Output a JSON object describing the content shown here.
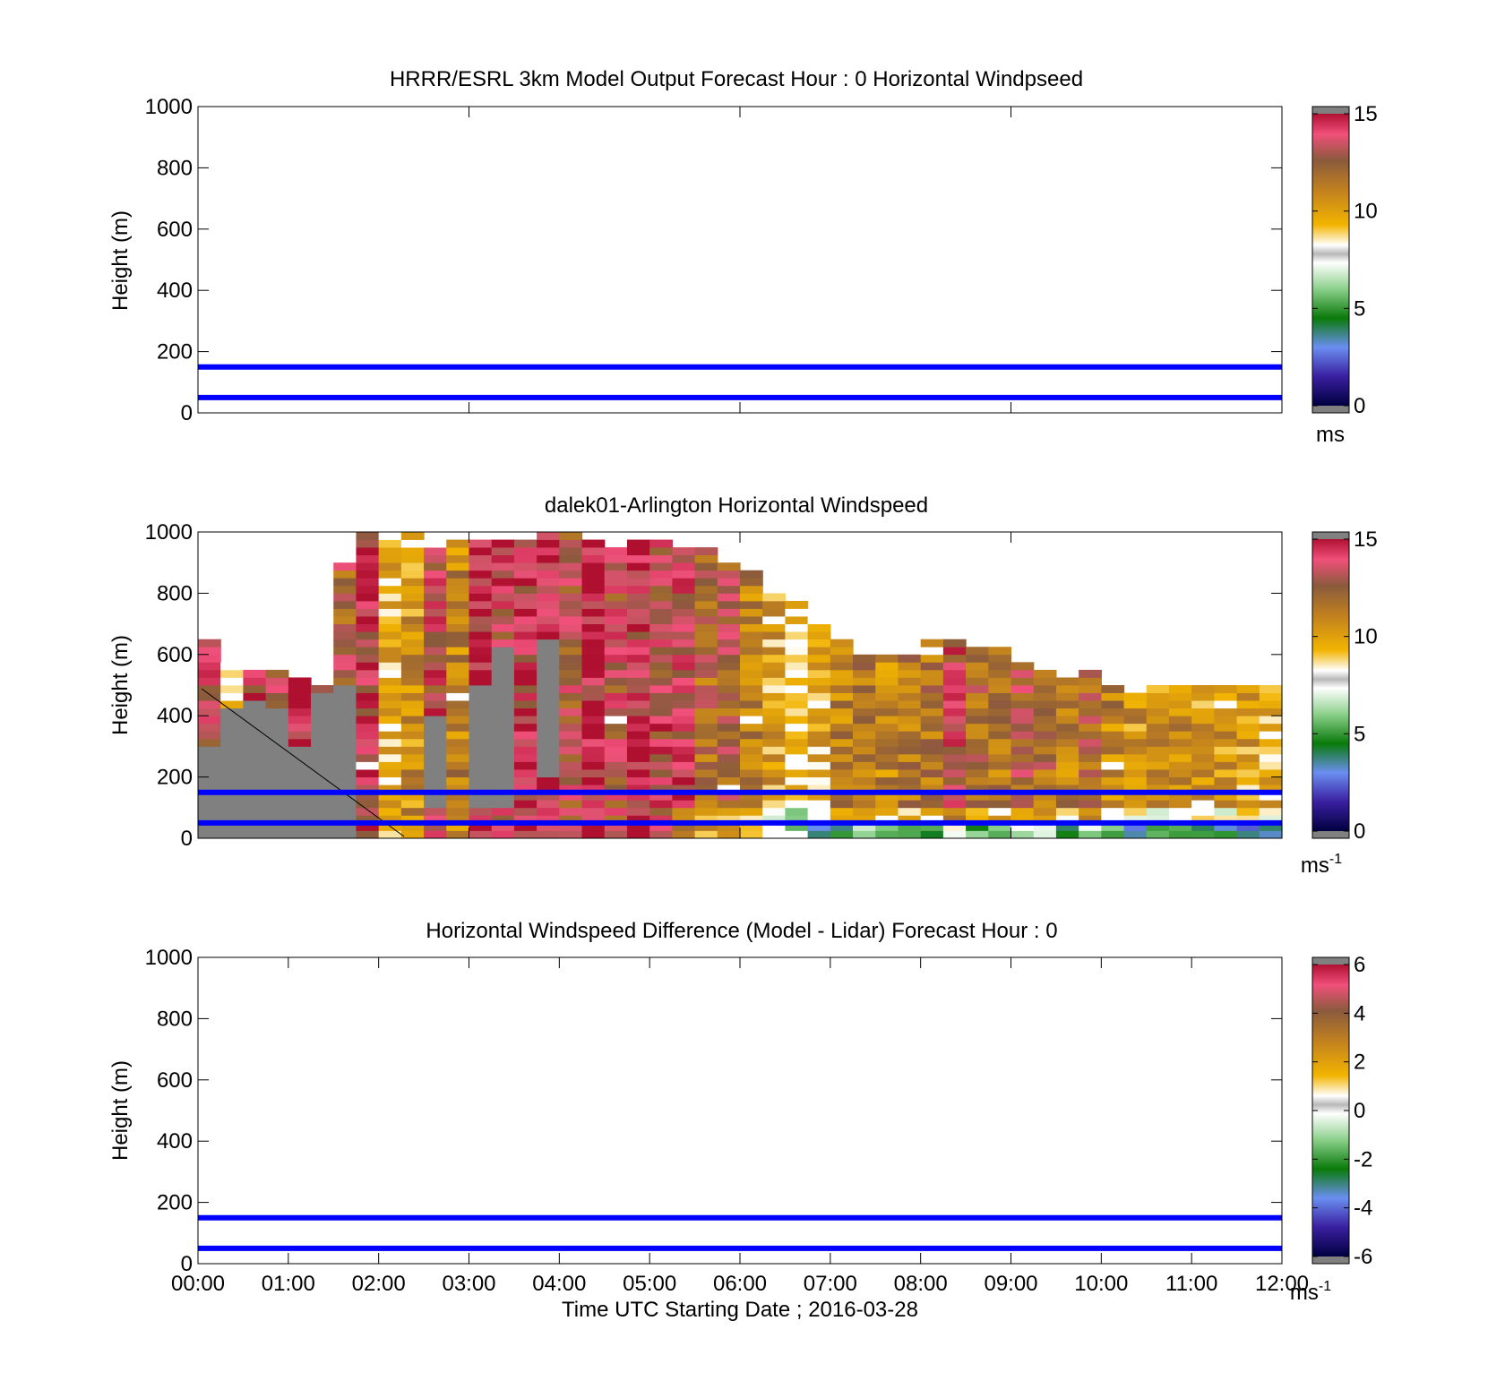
{
  "chart_data": [
    {
      "type": "heatmap",
      "title": "HRRR/ESRL 3km Model Output   Forecast Hour : 0 Horizontal Windpseed",
      "ylabel": "Height (m)",
      "ylim": [
        0,
        1000
      ],
      "yticks": [
        "0",
        "200",
        "400",
        "600",
        "800",
        "1000"
      ],
      "xlim": [
        "00:00",
        "12:00"
      ],
      "xtick_hours": [
        0,
        3,
        6,
        9,
        12
      ],
      "colorbar": {
        "ticks": [
          "0",
          "5",
          "10",
          "15"
        ],
        "min": 0,
        "max": 15,
        "unit": "ms",
        "unit_sup": "",
        "scale": "windspeed"
      },
      "reference_lines_m": [
        50,
        150
      ],
      "cells": []
    },
    {
      "type": "heatmap",
      "title": "dalek01-Arlington  Horizontal Windspeed",
      "ylabel": "Height (m)",
      "ylim": [
        0,
        1000
      ],
      "yticks": [
        "0",
        "200",
        "400",
        "600",
        "800",
        "1000"
      ],
      "xlim": [
        "00:00",
        "12:00"
      ],
      "xtick_hours": [
        0,
        3,
        6,
        9,
        12
      ],
      "colorbar": {
        "ticks": [
          "0",
          "5",
          "10",
          "15"
        ],
        "min": 0,
        "max": 15,
        "unit": "ms",
        "unit_sup": "-1",
        "scale": "windspeed"
      },
      "reference_lines_m": [
        50,
        150
      ],
      "time_step_minutes": 15,
      "height_step_m": 25,
      "columns": [
        {
          "t": 0.0,
          "top": 650,
          "speed": 13.5,
          "gray": [
            0,
            280
          ]
        },
        {
          "t": 0.25,
          "top": 575,
          "speed": 9.5,
          "gray": [
            0,
            410
          ]
        },
        {
          "t": 0.5,
          "top": 545,
          "speed": 14.0,
          "gray": [
            0,
            430
          ]
        },
        {
          "t": 0.75,
          "top": 540,
          "speed": 13.5,
          "gray": [
            0,
            420
          ]
        },
        {
          "t": 1.0,
          "top": 520,
          "speed": 14.5,
          "gray": [
            0,
            300
          ]
        },
        {
          "t": 1.25,
          "top": 500,
          "speed": 13.5,
          "gray": [
            0,
            470
          ]
        },
        {
          "t": 1.5,
          "top": 900,
          "speed": 12.5,
          "gray": [
            0,
            480
          ]
        },
        {
          "t": 1.75,
          "top": 990,
          "speed": 14.0
        },
        {
          "t": 2.0,
          "top": 990,
          "speed": 9.5
        },
        {
          "t": 2.25,
          "top": 980,
          "speed": 10.5
        },
        {
          "t": 2.5,
          "top": 975,
          "speed": 13.5,
          "gray": [
            80,
            400
          ]
        },
        {
          "t": 2.75,
          "top": 970,
          "speed": 11.0
        },
        {
          "t": 3.0,
          "top": 975,
          "speed": 14.5,
          "gray": [
            100,
            500
          ]
        },
        {
          "t": 3.25,
          "top": 975,
          "speed": 13.5,
          "gray": [
            100,
            620
          ]
        },
        {
          "t": 3.5,
          "top": 975,
          "speed": 14.0
        },
        {
          "t": 3.75,
          "top": 1000,
          "speed": 14.5,
          "gray": [
            200,
            650
          ]
        },
        {
          "t": 4.0,
          "top": 1000,
          "speed": 13.0
        },
        {
          "t": 4.25,
          "top": 960,
          "speed": 14.5
        },
        {
          "t": 4.5,
          "top": 935,
          "speed": 13.0
        },
        {
          "t": 4.75,
          "top": 960,
          "speed": 14.0
        },
        {
          "t": 5.0,
          "top": 975,
          "speed": 13.5
        },
        {
          "t": 5.25,
          "top": 950,
          "speed": 14.0
        },
        {
          "t": 5.5,
          "top": 935,
          "speed": 12.0
        },
        {
          "t": 5.75,
          "top": 900,
          "speed": 12.5
        },
        {
          "t": 6.0,
          "top": 855,
          "speed": 11.0
        },
        {
          "t": 6.25,
          "top": 800,
          "speed": 10.0
        },
        {
          "t": 6.5,
          "top": 755,
          "speed": 9.0
        },
        {
          "t": 6.75,
          "top": 725,
          "speed": 9.5
        },
        {
          "t": 7.0,
          "top": 650,
          "speed": 11.0
        },
        {
          "t": 7.25,
          "top": 580,
          "speed": 11.5
        },
        {
          "t": 7.5,
          "top": 590,
          "speed": 11.0
        },
        {
          "t": 7.75,
          "top": 600,
          "speed": 11.5
        },
        {
          "t": 8.0,
          "top": 640,
          "speed": 11.5
        },
        {
          "t": 8.25,
          "top": 640,
          "speed": 13.5
        },
        {
          "t": 8.5,
          "top": 620,
          "speed": 12.0
        },
        {
          "t": 8.75,
          "top": 610,
          "speed": 11.5
        },
        {
          "t": 9.0,
          "top": 560,
          "speed": 12.5
        },
        {
          "t": 9.25,
          "top": 540,
          "speed": 12.0
        },
        {
          "t": 9.5,
          "top": 520,
          "speed": 11.0
        },
        {
          "t": 9.75,
          "top": 530,
          "speed": 12.0
        },
        {
          "t": 10.0,
          "top": 500,
          "speed": 11.0
        },
        {
          "t": 10.25,
          "top": 470,
          "speed": 10.5
        },
        {
          "t": 10.5,
          "top": 500,
          "speed": 10.5
        },
        {
          "t": 10.75,
          "top": 495,
          "speed": 10.5
        },
        {
          "t": 11.0,
          "top": 500,
          "speed": 10.0
        },
        {
          "t": 11.25,
          "top": 500,
          "speed": 10.5
        },
        {
          "t": 11.5,
          "top": 490,
          "speed": 10.0
        },
        {
          "t": 11.75,
          "top": 500,
          "speed": 9.5
        }
      ]
    },
    {
      "type": "heatmap",
      "title": "Horizontal Windspeed Difference (Model - Lidar) Forecast Hour : 0",
      "ylabel": "Height (m)",
      "ylim": [
        0,
        1000
      ],
      "yticks": [
        "0",
        "200",
        "400",
        "600",
        "800",
        "1000"
      ],
      "xlim": [
        "00:00",
        "12:00"
      ],
      "xtick_labels": [
        "00:00",
        "01:00",
        "02:00",
        "03:00",
        "04:00",
        "05:00",
        "06:00",
        "07:00",
        "08:00",
        "09:00",
        "10:00",
        "11:00",
        "12:00"
      ],
      "xlabel": "Time UTC  Starting Date ; 2016-03-28",
      "colorbar": {
        "ticks": [
          "-6",
          "-4",
          "-2",
          "0",
          "2",
          "4",
          "6"
        ],
        "min": -6,
        "max": 6,
        "unit": "ms",
        "unit_sup": "-1",
        "scale": "difference"
      },
      "reference_lines_m": [
        50,
        150
      ],
      "cells": []
    }
  ],
  "colors": {
    "reference_line": "#0000ff",
    "no_data": "#808080",
    "scale_stops": [
      "#808080",
      "#000040",
      "#3a1fa0",
      "#6a8ef0",
      "#0a7a0a",
      "#8cd08c",
      "#ffffff",
      "#f2b400",
      "#c08020",
      "#8a5a3c",
      "#f0507a",
      "#b01030",
      "#808080"
    ]
  }
}
